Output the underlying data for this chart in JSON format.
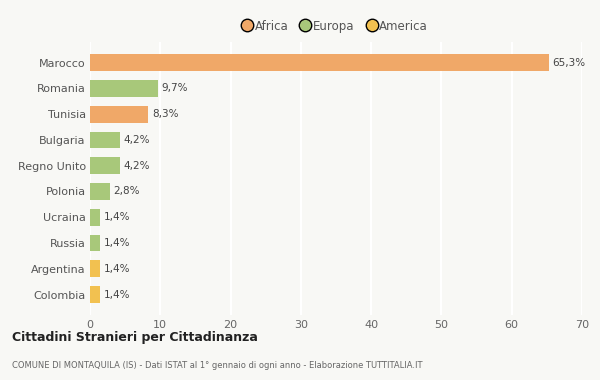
{
  "categories": [
    "Colombia",
    "Argentina",
    "Russia",
    "Ucraina",
    "Polonia",
    "Regno Unito",
    "Bulgaria",
    "Tunisia",
    "Romania",
    "Marocco"
  ],
  "values": [
    1.4,
    1.4,
    1.4,
    1.4,
    2.8,
    4.2,
    4.2,
    8.3,
    9.7,
    65.3
  ],
  "colors": [
    "#f2c150",
    "#f2c150",
    "#a8c87a",
    "#a8c87a",
    "#a8c87a",
    "#a8c87a",
    "#a8c87a",
    "#f0a868",
    "#a8c87a",
    "#f0a868"
  ],
  "labels": [
    "1,4%",
    "1,4%",
    "1,4%",
    "1,4%",
    "2,8%",
    "4,2%",
    "4,2%",
    "8,3%",
    "9,7%",
    "65,3%"
  ],
  "legend": [
    {
      "label": "Africa",
      "color": "#f0a868"
    },
    {
      "label": "Europa",
      "color": "#a8c87a"
    },
    {
      "label": "America",
      "color": "#f2c150"
    }
  ],
  "xlim": [
    0,
    70
  ],
  "xticks": [
    0,
    10,
    20,
    30,
    40,
    50,
    60,
    70
  ],
  "title": "Cittadini Stranieri per Cittadinanza",
  "subtitle": "COMUNE DI MONTAQUILA (IS) - Dati ISTAT al 1° gennaio di ogni anno - Elaborazione TUTTITALIA.IT",
  "background_color": "#f8f8f5",
  "plot_bg_color": "#f8f8f5",
  "grid_color": "#ffffff",
  "bar_height": 0.65
}
